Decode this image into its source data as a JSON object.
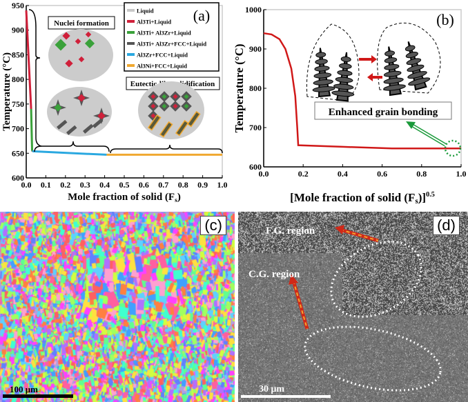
{
  "chart_data": [
    {
      "type": "line",
      "panel_label": "(a)",
      "xlabel": "Mole fraction of solid (F",
      "xlabel_sub": "s",
      "xlabel_end": ")",
      "ylabel": "Temperature (°C)",
      "xlim": [
        0,
        1
      ],
      "ylim": [
        600,
        950
      ],
      "xticks": [
        "0.0",
        "0.1",
        "0.2",
        "0.3",
        "0.4",
        "0.5",
        "0.6",
        "0.7",
        "0.8",
        "0.9",
        "1.0"
      ],
      "yticks": [
        "600",
        "650",
        "700",
        "750",
        "800",
        "850",
        "900",
        "950"
      ],
      "legend_position": "top-right",
      "series": [
        {
          "name": "Liquid",
          "color": "#c8c8c8",
          "points": []
        },
        {
          "name": "Al3Ti+Liquid",
          "color": "#d0203a",
          "points": [
            [
              0,
              940
            ],
            [
              0.025,
              740
            ]
          ]
        },
        {
          "name": "Al3Ti+ Al3Zr+Liquid",
          "color": "#3aa13a",
          "points": [
            [
              0.025,
              740
            ],
            [
              0.03,
              655
            ]
          ]
        },
        {
          "name": "Al3Ti+ Al3Zr+FCC+Liquid",
          "color": "#555555",
          "points": [
            [
              0.03,
              655
            ],
            [
              0.032,
              654
            ]
          ]
        },
        {
          "name": "Al3Zr+FCC+Liquid",
          "color": "#2aa8e0",
          "points": [
            [
              0.032,
              654
            ],
            [
              0.41,
              647
            ]
          ]
        },
        {
          "name": "Al3Ni+FCC+Liquid",
          "color": "#f0a830",
          "points": [
            [
              0.41,
              647
            ],
            [
              1.0,
              647
            ]
          ]
        }
      ],
      "annotations": [
        "Nuclei formation",
        "Eutectic-like solidification"
      ]
    },
    {
      "type": "line",
      "panel_label": "(b)",
      "xlabel": "[Mole fraction of solid (F",
      "xlabel_sub": "s",
      "xlabel_end": ")]",
      "xlabel_sup": "0.5",
      "ylabel": "Temperature (°C)",
      "xlim": [
        0,
        1
      ],
      "ylim": [
        600,
        1000
      ],
      "xticks": [
        "0.0",
        "0.2",
        "0.4",
        "0.6",
        "0.8",
        "1.0"
      ],
      "yticks": [
        "600",
        "700",
        "800",
        "900",
        "1000"
      ],
      "series": [
        {
          "name": "curve",
          "color": "#d01818",
          "points": [
            [
              0,
              940
            ],
            [
              0.04,
              937
            ],
            [
              0.08,
              925
            ],
            [
              0.11,
              900
            ],
            [
              0.14,
              850
            ],
            [
              0.16,
              780
            ],
            [
              0.17,
              700
            ],
            [
              0.175,
              655
            ],
            [
              0.4,
              651
            ],
            [
              0.65,
              647
            ],
            [
              1.0,
              647
            ]
          ]
        }
      ],
      "annotations": [
        "Enhanced grain bonding"
      ]
    }
  ],
  "panel_c": {
    "label": "(c)",
    "scale_bar": "100 μm"
  },
  "panel_d": {
    "label": "(d)",
    "scale_bar": "30 μm",
    "fg": "F.G. region",
    "cg": "C.G. region"
  }
}
